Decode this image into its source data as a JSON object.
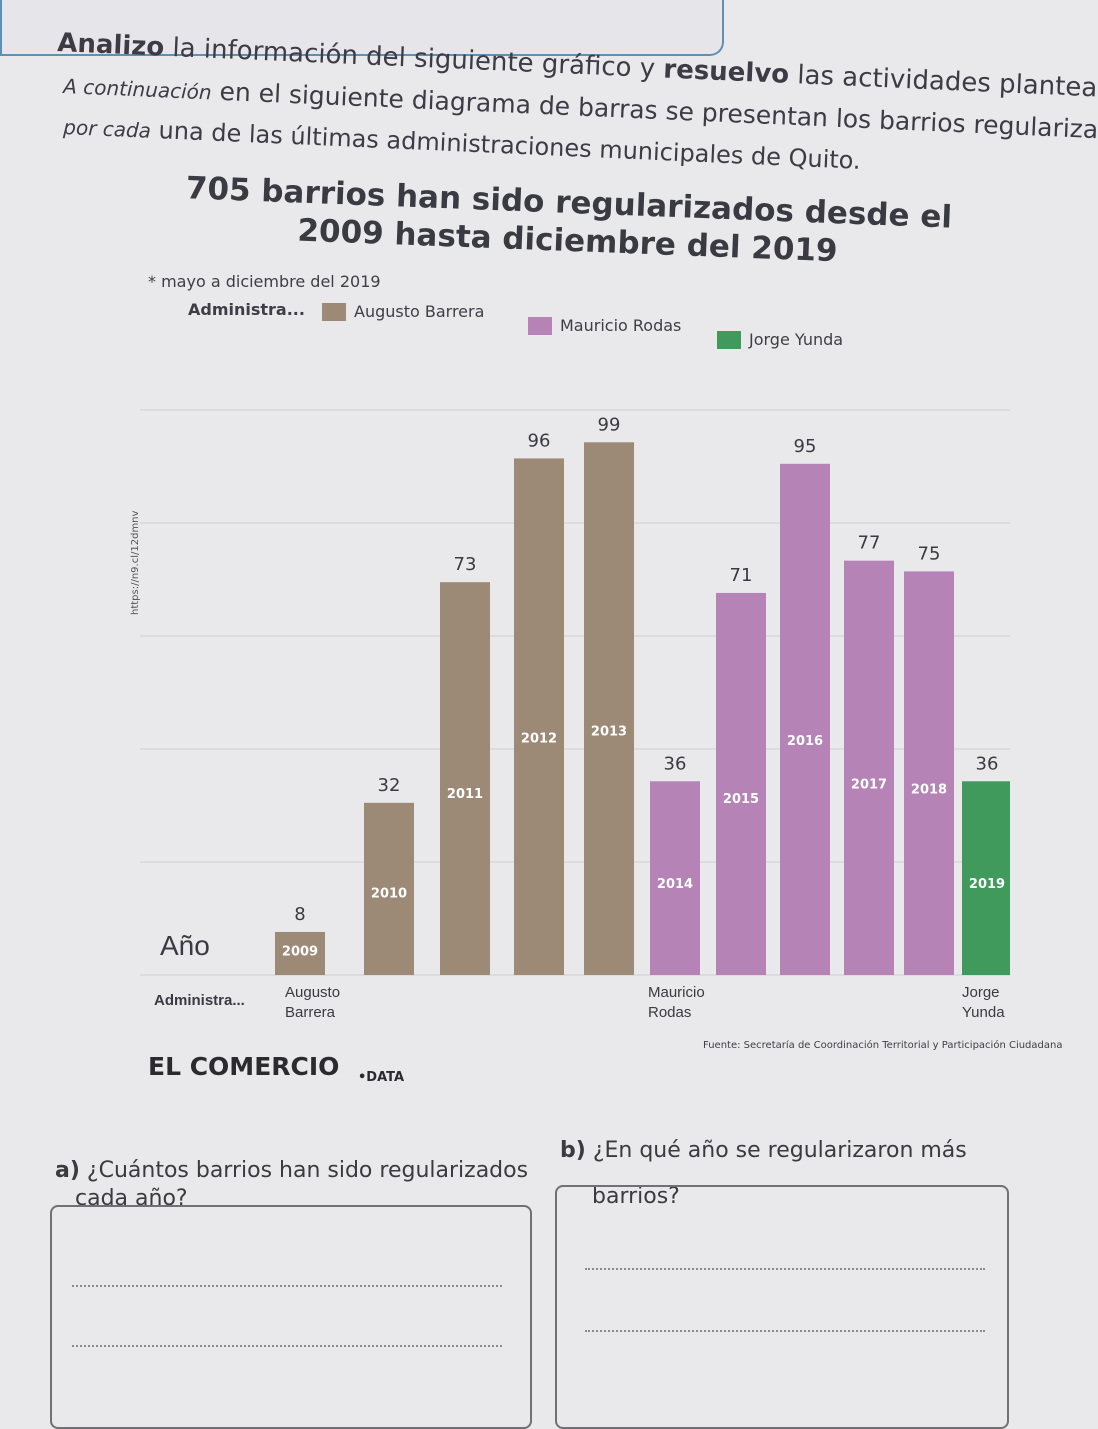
{
  "header": {
    "line1_bold": "Analizo",
    "line1_a": " la información del siguiente gráfico y ",
    "line1_bold2": "resuelvo",
    "line1_b": " las actividades planteadas.",
    "line2_a": "A continuación",
    "line2_b": " en el siguiente diagrama de barras se presentan los barrios regularizados",
    "line3_a": "por cada",
    "line3_b": " una de las últimas administraciones municipales de Quito."
  },
  "chart_data": {
    "type": "bar",
    "title": "705 barrios han sido regularizados desde el 2009 hasta diciembre del 2019",
    "note": "* mayo a diciembre del 2019",
    "legend_label": "Administra...",
    "series": [
      {
        "name": "Augusto Barrera",
        "color": "#9d8a76"
      },
      {
        "name": "Mauricio Rodas",
        "color": "#b683b6"
      },
      {
        "name": "Jorge Yunda",
        "color": "#3f9a5c"
      }
    ],
    "categories": [
      "2009",
      "2010",
      "2011",
      "2012",
      "2013",
      "2014",
      "2015",
      "2016",
      "2017",
      "2018",
      "2019"
    ],
    "values": [
      8,
      32,
      73,
      96,
      99,
      36,
      71,
      95,
      77,
      75,
      36
    ],
    "bar_series": [
      0,
      0,
      0,
      0,
      0,
      1,
      1,
      1,
      1,
      1,
      2
    ],
    "ylim": [
      0,
      105
    ],
    "x_row_label": "Año",
    "admin_row_label": "Administra...",
    "admin_groups": [
      "Augusto Barrera",
      "Mauricio Rodas",
      "Jorge Yunda"
    ],
    "source": "Fuente: Secretaría de Coordinación Territorial y Participación Ciudadana",
    "url": "https://n9.cl/12dmnv"
  },
  "footer": {
    "logo": "EL COMERCIO",
    "tag": "•DATA"
  },
  "questions": {
    "a_label": "a)",
    "a_text_1": "¿Cuántos barrios han sido regularizados",
    "a_text_2": "cada año?",
    "b_label": "b)",
    "b_text_1": "¿En qué año se regularizaron más",
    "b_text_2": "barrios?"
  }
}
